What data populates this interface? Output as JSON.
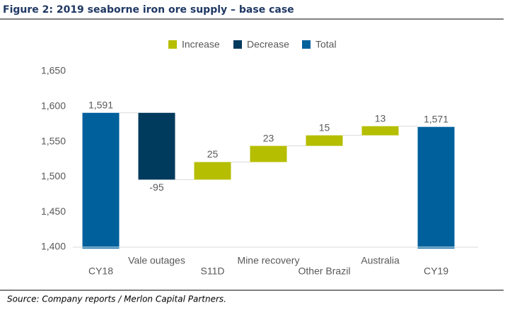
{
  "chart_data": {
    "type": "waterfall",
    "title": "Figure 2: 2019 seaborne iron ore supply – base case",
    "source": "Source: Company reports / Merlon Capital Partners.",
    "categories": [
      "CY18",
      "Vale outages",
      "S11D",
      "Mine recovery",
      "Other Brazil",
      "Australia",
      "CY19"
    ],
    "values": [
      1591,
      -95,
      25,
      23,
      15,
      13,
      1571
    ],
    "value_labels": [
      "1,591",
      "-95",
      "25",
      "23",
      "15",
      "13",
      "1,571"
    ],
    "series": [
      {
        "name": "Increase",
        "color": "#b5be00"
      },
      {
        "name": "Decrease",
        "color": "#003a5d"
      },
      {
        "name": "Total",
        "color": "#00609c"
      }
    ],
    "ylim": [
      1400,
      1650
    ],
    "yticks": [
      {
        "value": 1400,
        "label": "1,400"
      },
      {
        "value": 1450,
        "label": "1,450"
      },
      {
        "value": 1500,
        "label": "1,500"
      },
      {
        "value": 1550,
        "label": "1,550"
      },
      {
        "value": 1600,
        "label": "1,600"
      },
      {
        "value": 1650,
        "label": "1,650"
      }
    ],
    "legend": "top"
  }
}
